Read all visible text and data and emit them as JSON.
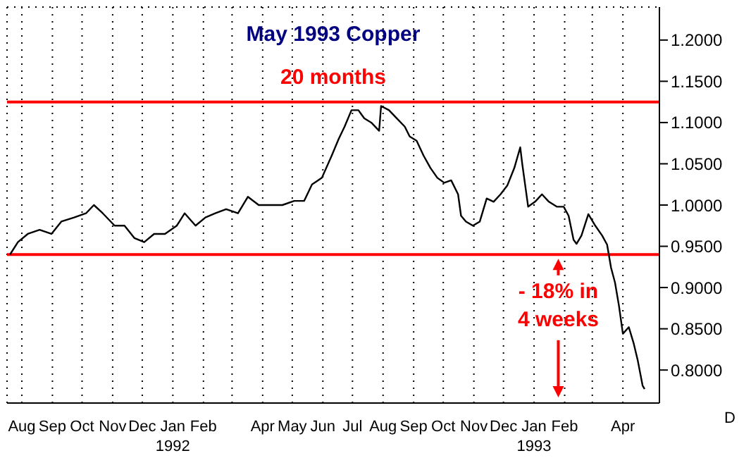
{
  "chart_data": {
    "type": "line",
    "title": "May 1993 Copper",
    "x": [
      "1991-08-04",
      "1991-08-12",
      "1991-08-22",
      "1991-09-03",
      "1991-09-15",
      "1991-09-25",
      "1991-10-08",
      "1991-10-20",
      "1991-10-28",
      "1991-11-06",
      "1991-11-18",
      "1991-11-28",
      "1991-12-08",
      "1991-12-18",
      "1991-12-28",
      "1992-01-08",
      "1992-01-20",
      "1992-01-28",
      "1992-02-08",
      "1992-02-18",
      "1992-02-28",
      "1992-03-10",
      "1992-03-22",
      "1992-04-01",
      "1992-04-12",
      "1992-04-24",
      "1992-05-06",
      "1992-05-18",
      "1992-05-28",
      "1992-06-05",
      "1992-06-15",
      "1992-06-25",
      "1992-07-02",
      "1992-07-08",
      "1992-07-15",
      "1992-07-22",
      "1992-07-28",
      "1992-08-04",
      "1992-08-12",
      "1992-08-14",
      "1992-08-22",
      "1992-08-30",
      "1992-09-07",
      "1992-09-12",
      "1992-09-19",
      "1992-09-26",
      "1992-10-03",
      "1992-10-10",
      "1992-10-17",
      "1992-10-24",
      "1992-10-31",
      "1992-11-03",
      "1992-11-08",
      "1992-11-15",
      "1992-11-22",
      "1992-11-29",
      "1992-12-06",
      "1992-12-13",
      "1992-12-20",
      "1992-12-27",
      "1993-01-02",
      "1993-01-04",
      "1993-01-10",
      "1993-01-17",
      "1993-01-24",
      "1993-01-31",
      "1993-02-08",
      "1993-02-15",
      "1993-02-20",
      "1993-02-25",
      "1993-02-28",
      "1993-03-05",
      "1993-03-12",
      "1993-03-19",
      "1993-03-26",
      "1993-03-31",
      "1993-04-04",
      "1993-04-08",
      "1993-04-12",
      "1993-04-16",
      "1993-04-22",
      "1993-04-27",
      "1993-05-01",
      "1993-05-06",
      "1993-05-08"
    ],
    "series": [
      {
        "color": "#000000",
        "values": [
          0.94,
          0.955,
          0.965,
          0.97,
          0.965,
          0.98,
          0.985,
          0.99,
          1.0,
          0.99,
          0.975,
          0.975,
          0.96,
          0.955,
          0.965,
          0.965,
          0.975,
          0.99,
          0.975,
          0.985,
          0.99,
          0.995,
          0.99,
          1.01,
          1.0,
          1.0,
          1.0,
          1.005,
          1.005,
          1.025,
          1.033,
          1.06,
          1.08,
          1.095,
          1.115,
          1.115,
          1.105,
          1.1,
          1.09,
          1.12,
          1.115,
          1.105,
          1.095,
          1.083,
          1.078,
          1.06,
          1.045,
          1.033,
          1.027,
          1.03,
          1.013,
          0.987,
          0.98,
          0.975,
          0.98,
          1.008,
          1.004,
          1.013,
          1.024,
          1.045,
          1.07,
          1.05,
          0.998,
          1.004,
          1.013,
          1.004,
          0.998,
          0.998,
          0.987,
          0.958,
          0.953,
          0.963,
          0.989,
          0.975,
          0.963,
          0.952,
          0.924,
          0.906,
          0.878,
          0.844,
          0.852,
          0.832,
          0.812,
          0.781,
          0.777
        ]
      }
    ],
    "xlim": [
      "1991-08-01",
      "1993-05-23"
    ],
    "xticks": [
      {
        "value": "1991-08-16",
        "label": "Aug"
      },
      {
        "value": "1991-09-16",
        "label": "Sep"
      },
      {
        "value": "1991-10-16",
        "label": "Oct"
      },
      {
        "value": "1991-11-16",
        "label": "Nov"
      },
      {
        "value": "1991-12-16",
        "label": "Dec"
      },
      {
        "value": "1992-01-16",
        "label": "Jan\n1992"
      },
      {
        "value": "1992-02-16",
        "label": "Feb"
      },
      {
        "value": "1992-03-16",
        "label": null
      },
      {
        "value": "1992-04-16",
        "label": "Apr"
      },
      {
        "value": "1992-05-16",
        "label": "May"
      },
      {
        "value": "1992-06-16",
        "label": "Jun"
      },
      {
        "value": "1992-07-16",
        "label": "Jul"
      },
      {
        "value": "1992-08-16",
        "label": "Aug"
      },
      {
        "value": "1992-09-16",
        "label": "Sep"
      },
      {
        "value": "1992-10-16",
        "label": "Oct"
      },
      {
        "value": "1992-11-16",
        "label": "Nov"
      },
      {
        "value": "1992-12-16",
        "label": "Dec"
      },
      {
        "value": "1993-01-16",
        "label": "Jan\n1993"
      },
      {
        "value": "1993-02-16",
        "label": "Feb"
      },
      {
        "value": "1993-03-16",
        "label": null
      },
      {
        "value": "1993-04-16",
        "label": "Apr"
      }
    ],
    "ylim": [
      0.76,
      1.24
    ],
    "yticks": [
      {
        "value": 0.8,
        "label": "0.8000"
      },
      {
        "value": 0.85,
        "label": "0.8500"
      },
      {
        "value": 0.9,
        "label": "0.9000"
      },
      {
        "value": 0.95,
        "label": "0.9500"
      },
      {
        "value": 1.0,
        "label": "1.0000"
      },
      {
        "value": 1.05,
        "label": "1.0500"
      },
      {
        "value": 1.1,
        "label": "1.1000"
      },
      {
        "value": 1.15,
        "label": "1.1500"
      },
      {
        "value": 1.2,
        "label": "1.2000"
      }
    ],
    "grid": true,
    "legend": false,
    "marker": "none",
    "line_style": "solid",
    "ref_lines": [
      {
        "axis": "y",
        "value": 1.125,
        "label": "20 months",
        "color": "#ff0000"
      },
      {
        "axis": "y",
        "value": 0.94,
        "label": null,
        "color": "#ff0000"
      }
    ],
    "annotations": [
      "- 18% in\n4 weeks",
      "D"
    ]
  }
}
